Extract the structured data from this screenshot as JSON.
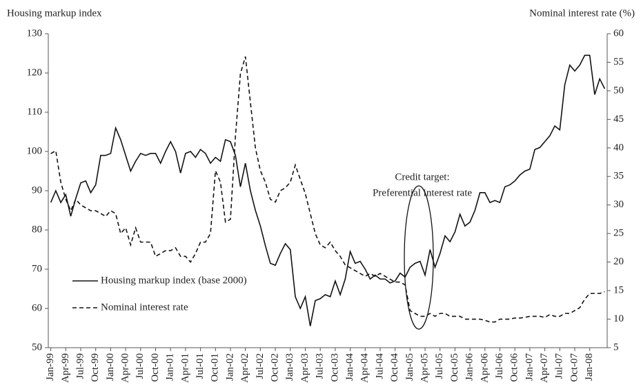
{
  "chart_data": {
    "type": "line",
    "y_axis_label": "Housing markup index",
    "y2_axis_label": "Nominal interest rate (%)",
    "annotation": [
      "Credit target:",
      "Preferential  interest rate"
    ],
    "categories": [
      "Jan-99",
      null,
      null,
      "Apr-99",
      null,
      null,
      "Jul-99",
      null,
      null,
      "Oct-99",
      null,
      null,
      "Jan-00",
      null,
      null,
      "Apr-00",
      null,
      null,
      "Jul-00",
      null,
      null,
      "Oct-00",
      null,
      null,
      "Jan-01",
      null,
      null,
      "Apr-01",
      null,
      null,
      "Jul-01",
      null,
      null,
      "Oct-01",
      null,
      null,
      "Jan-02",
      null,
      null,
      "Apr-02",
      null,
      null,
      "Jul-02",
      null,
      null,
      "Oct-02",
      null,
      null,
      "Jan-03",
      null,
      null,
      "Apr-03",
      null,
      null,
      "Jul-03",
      null,
      null,
      "Oct-03",
      null,
      null,
      "Jan-04",
      null,
      null,
      "Apr-04",
      null,
      null,
      "Jul-04",
      null,
      null,
      "Oct-04",
      null,
      null,
      "Jan-05",
      null,
      null,
      "Apr-05",
      null,
      null,
      "Jul-05",
      null,
      null,
      "Oct-05",
      null,
      null,
      "Jan-06",
      null,
      null,
      "Apr-06",
      null,
      null,
      "Jul-06",
      null,
      null,
      "Oct-06",
      null,
      null,
      "Jan-07",
      null,
      null,
      "Apr-07",
      null,
      null,
      "Jul-07",
      null,
      null,
      "Oct-07",
      null,
      null,
      "Jan-08",
      null,
      null,
      null
    ],
    "series": [
      {
        "name": "Housing markup index (base 2000)",
        "color": "#111111",
        "style": "solid",
        "values": [
          87,
          90,
          87,
          89,
          83.5,
          88,
          92,
          92.5,
          89.5,
          91.5,
          99,
          99,
          99.5,
          106,
          103,
          99,
          95,
          97.5,
          99.5,
          99,
          99.5,
          99.5,
          97,
          100,
          102.5,
          100,
          94.5,
          99.5,
          100,
          98.5,
          100.5,
          99.5,
          97,
          98.5,
          97.5,
          103,
          102.5,
          99,
          91,
          97,
          90,
          85,
          81,
          76,
          71.5,
          71,
          74,
          76.5,
          75,
          63,
          60,
          63,
          55.5,
          62,
          62.5,
          63.5,
          63,
          67,
          63.5,
          67.5,
          74.5,
          71.5,
          72,
          70,
          67.5,
          68.5,
          67.5,
          67.5,
          66.5,
          67,
          69,
          68,
          70.5,
          71.5,
          72,
          68.5,
          75,
          70.5,
          74,
          78.5,
          77,
          79.5,
          84,
          81,
          82,
          85,
          89.5,
          89.5,
          87,
          87.5,
          87,
          91,
          91.5,
          92.5,
          94,
          95,
          95.5,
          100.5,
          101,
          102.5,
          104,
          106.5,
          105.5,
          117,
          122,
          120.5,
          122,
          124.5,
          124.5,
          114.5,
          118.5,
          116
        ]
      },
      {
        "name": "Nominal interest rate",
        "color": "#111111",
        "style": "dashed",
        "axis": "y2",
        "values": [
          39,
          39.5,
          34,
          31,
          29,
          31,
          30,
          29.5,
          29,
          29,
          28.5,
          28,
          29,
          28.5,
          25,
          26,
          23,
          26,
          23.5,
          23.5,
          23.5,
          21,
          21.5,
          22,
          22,
          22.5,
          21,
          21,
          20,
          21.5,
          23.5,
          23.5,
          25,
          36,
          34,
          27,
          27.5,
          42,
          53,
          56,
          48,
          40,
          36,
          34,
          31,
          30.5,
          32.5,
          33,
          34,
          37,
          34.5,
          32,
          28.5,
          25,
          23,
          22.5,
          23.5,
          22,
          21,
          19.5,
          19,
          18.5,
          18,
          17.5,
          18,
          17.5,
          18,
          17.5,
          17,
          16.5,
          16.5,
          16,
          11.5,
          11,
          10.5,
          10.5,
          11,
          10.5,
          11,
          11,
          10.5,
          10.5,
          10.5,
          10,
          10,
          10,
          10,
          9.8,
          9.5,
          9.5,
          10,
          10,
          10,
          10.2,
          10.2,
          10.3,
          10.5,
          10.5,
          10.5,
          10.3,
          10.8,
          10.5,
          10.5,
          11,
          11,
          11.5,
          12,
          13.5,
          14.5,
          14.5,
          14.5,
          14.8
        ]
      }
    ],
    "ylim": [
      50,
      130
    ],
    "yticks": [
      50,
      60,
      70,
      80,
      90,
      100,
      110,
      120,
      130
    ],
    "y2lim": [
      5,
      60
    ],
    "y2ticks": [
      5,
      10,
      15,
      20,
      25,
      30,
      35,
      40,
      45,
      50,
      55,
      60
    ],
    "grid": false
  }
}
